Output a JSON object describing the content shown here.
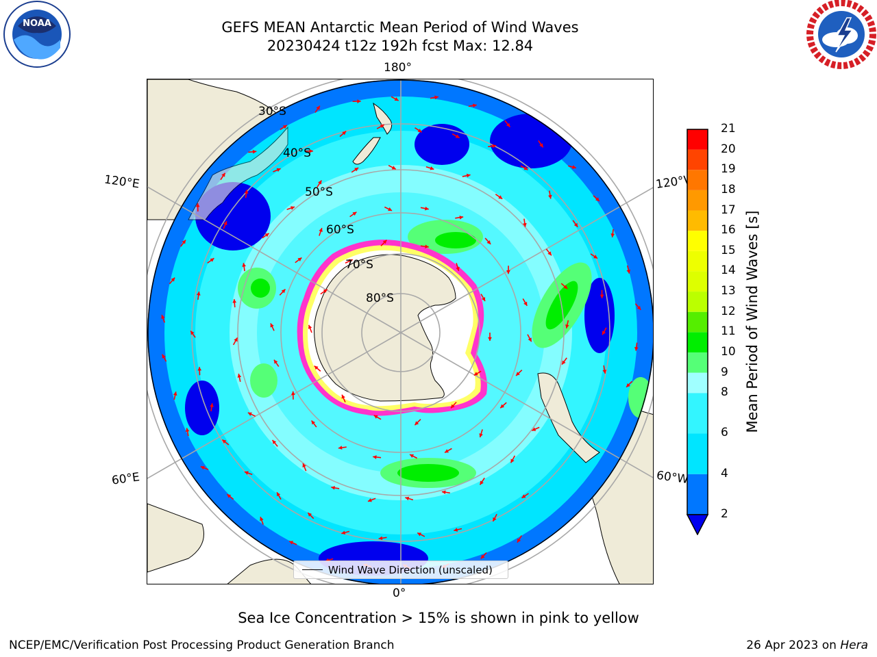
{
  "title_line1": "GEFS MEAN Antarctic Mean Period of Wind Waves",
  "title_line2": "20230424 t12z 192h fcst   Max: 12.84",
  "logos": {
    "left": {
      "icon": "noaa-logo",
      "text": "NOAA"
    },
    "right": {
      "icon": "national-weather-service-logo"
    }
  },
  "map": {
    "projection": "south-polar-stereographic",
    "longitude_labels": [
      "180°",
      "120°E",
      "120°W",
      "60°E",
      "60°W",
      "0°"
    ],
    "latitude_labels": [
      "30°S",
      "40°S",
      "50°S",
      "60°S",
      "70°S",
      "80°S"
    ],
    "arrow_color": "#ff0000",
    "land_color": "#efebd8",
    "sea_ice_color": "#ff33cc"
  },
  "legend": {
    "label": "Wind Wave Direction (unscaled)"
  },
  "colorbar": {
    "label": "Mean Period of Wind Waves [s]",
    "ticks": [
      "21",
      "20",
      "19",
      "18",
      "17",
      "16",
      "15",
      "14",
      "13",
      "12",
      "11",
      "10",
      "9",
      "8",
      "6",
      "4",
      "2"
    ],
    "bins": [
      {
        "from": 2,
        "to": 4,
        "color": "#0077ff"
      },
      {
        "from": 4,
        "to": 6,
        "color": "#00e5ff"
      },
      {
        "from": 6,
        "to": 8,
        "color": "#33f5ff"
      },
      {
        "from": 8,
        "to": 9,
        "color": "#a0ffff"
      },
      {
        "from": 9,
        "to": 10,
        "color": "#55ff77"
      },
      {
        "from": 10,
        "to": 11,
        "color": "#00ee00"
      },
      {
        "from": 11,
        "to": 12,
        "color": "#55ee00"
      },
      {
        "from": 12,
        "to": 13,
        "color": "#bbff00"
      },
      {
        "from": 13,
        "to": 14,
        "color": "#ddff00"
      },
      {
        "from": 14,
        "to": 15,
        "color": "#eeff00"
      },
      {
        "from": 15,
        "to": 16,
        "color": "#ffff00"
      },
      {
        "from": 16,
        "to": 17,
        "color": "#ffbb00"
      },
      {
        "from": 17,
        "to": 18,
        "color": "#ff9900"
      },
      {
        "from": 18,
        "to": 19,
        "color": "#ff7700"
      },
      {
        "from": 19,
        "to": 20,
        "color": "#ff4400"
      },
      {
        "from": 20,
        "to": 21,
        "color": "#ff0000"
      }
    ],
    "under_color": "#0000ee"
  },
  "caption": "Sea Ice Concentration > 15% is shown in pink to yellow",
  "footer_left": "NCEP/EMC/Verification Post Processing Product Generation Branch",
  "footer_date": "26 Apr 2023 on",
  "footer_machine": "Hera"
}
